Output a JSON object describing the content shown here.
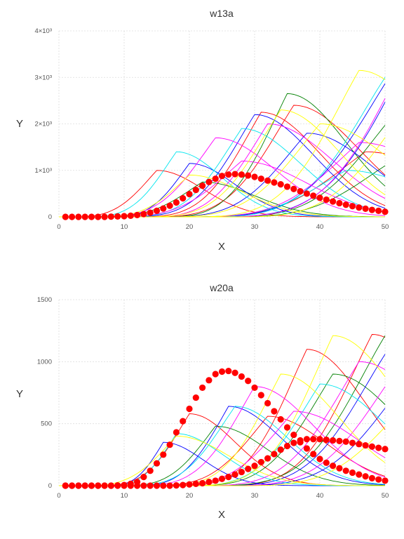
{
  "colors": {
    "observed": "#ff0000",
    "curve_palette": [
      "#ff0000",
      "#008000",
      "#0000ff",
      "#00e5ee",
      "#ff00ff",
      "#ffff00",
      "#cc0000",
      "#0000cc"
    ]
  },
  "chart_data": [
    {
      "type": "line",
      "title": "w13a",
      "xlabel": "X",
      "ylabel": "Y",
      "xlim": [
        0,
        50
      ],
      "ylim": [
        0,
        4000
      ],
      "xticks": [
        {
          "value": 0,
          "label": "0"
        },
        {
          "value": 10,
          "label": "10"
        },
        {
          "value": 20,
          "label": "20"
        },
        {
          "value": 30,
          "label": "30"
        },
        {
          "value": 40,
          "label": "40"
        },
        {
          "value": 50,
          "label": "50"
        }
      ],
      "yticks": [
        {
          "value": 0,
          "label": "0"
        },
        {
          "value": 1000,
          "label": "1×10³"
        },
        {
          "value": 2000,
          "label": "2×10³"
        },
        {
          "value": 3000,
          "label": "3×10³"
        },
        {
          "value": 4000,
          "label": "4×10³"
        }
      ],
      "grid": true,
      "ensemble": {
        "style": "thin lines",
        "members": [
          {
            "color": "#ff0000",
            "start": 2,
            "peak_x": 15,
            "peak_y": 1000,
            "width": 7
          },
          {
            "color": "#ff0000",
            "start": 12,
            "peak_x": 31,
            "peak_y": 2250,
            "width": 9
          },
          {
            "color": "#ff0000",
            "start": 14,
            "peak_x": 36,
            "peak_y": 2400,
            "width": 10
          },
          {
            "color": "#ff0000",
            "start": 18,
            "peak_x": 47,
            "peak_y": 1400,
            "width": 12
          },
          {
            "color": "#008000",
            "start": 16,
            "peak_x": 35,
            "peak_y": 2650,
            "width": 9
          },
          {
            "color": "#008000",
            "start": 22,
            "peak_x": 52,
            "peak_y": 2300,
            "width": 11
          },
          {
            "color": "#008000",
            "start": 5,
            "peak_x": 22,
            "peak_y": 750,
            "width": 8
          },
          {
            "color": "#008000",
            "start": 26,
            "peak_x": 50,
            "peak_y": 1100,
            "width": 12
          },
          {
            "color": "#0000ff",
            "start": 10,
            "peak_x": 30,
            "peak_y": 2200,
            "width": 9
          },
          {
            "color": "#0000ff",
            "start": 24,
            "peak_x": 56,
            "peak_y": 4100,
            "width": 14
          },
          {
            "color": "#0000ff",
            "start": 20,
            "peak_x": 52,
            "peak_y": 3300,
            "width": 13
          },
          {
            "color": "#0000ff",
            "start": 8,
            "peak_x": 20,
            "peak_y": 1150,
            "width": 7
          },
          {
            "color": "#0000ff",
            "start": 15,
            "peak_x": 38,
            "peak_y": 1800,
            "width": 10
          },
          {
            "color": "#00e5ee",
            "start": 4,
            "peak_x": 18,
            "peak_y": 1400,
            "width": 7
          },
          {
            "color": "#00e5ee",
            "start": 22,
            "peak_x": 50,
            "peak_y": 3000,
            "width": 12
          },
          {
            "color": "#00e5ee",
            "start": 10,
            "peak_x": 28,
            "peak_y": 1900,
            "width": 9
          },
          {
            "color": "#00e5ee",
            "start": 18,
            "peak_x": 44,
            "peak_y": 1000,
            "width": 11
          },
          {
            "color": "#ff00ff",
            "start": 6,
            "peak_x": 24,
            "peak_y": 1700,
            "width": 9
          },
          {
            "color": "#ff00ff",
            "start": 14,
            "peak_x": 32,
            "peak_y": 2000,
            "width": 10
          },
          {
            "color": "#ff00ff",
            "start": 24,
            "peak_x": 55,
            "peak_y": 3900,
            "width": 13
          },
          {
            "color": "#ff00ff",
            "start": 20,
            "peak_x": 46,
            "peak_y": 1600,
            "width": 12
          },
          {
            "color": "#ff00ff",
            "start": 8,
            "peak_x": 28,
            "peak_y": 1200,
            "width": 10
          },
          {
            "color": "#ffff00",
            "start": 12,
            "peak_x": 34,
            "peak_y": 2300,
            "width": 9
          },
          {
            "color": "#ffff00",
            "start": 20,
            "peak_x": 46,
            "peak_y": 3150,
            "width": 11
          },
          {
            "color": "#ffff00",
            "start": 16,
            "peak_x": 40,
            "peak_y": 2000,
            "width": 11
          },
          {
            "color": "#ffff00",
            "start": 28,
            "peak_x": 54,
            "peak_y": 2500,
            "width": 13
          },
          {
            "color": "#ffff00",
            "start": 6,
            "peak_x": 20,
            "peak_y": 900,
            "width": 8
          }
        ]
      },
      "series": [
        {
          "style": "markers",
          "color": "#ff0000",
          "x": [
            1,
            2,
            3,
            4,
            5,
            6,
            7,
            8,
            9,
            10,
            11,
            12,
            13,
            14,
            15,
            16,
            17,
            18,
            19,
            20,
            21,
            22,
            23,
            24,
            25,
            26,
            27,
            28,
            29,
            30,
            31,
            32,
            33,
            34,
            35,
            36,
            37,
            38,
            39,
            40,
            41,
            42,
            43,
            44,
            45,
            46,
            47,
            48,
            49,
            50
          ],
          "y": [
            0,
            0,
            0,
            0,
            0,
            0,
            0,
            5,
            10,
            15,
            25,
            40,
            60,
            90,
            130,
            180,
            240,
            310,
            400,
            490,
            580,
            670,
            750,
            820,
            880,
            910,
            920,
            910,
            890,
            860,
            820,
            780,
            740,
            700,
            650,
            600,
            550,
            500,
            455,
            410,
            370,
            330,
            295,
            260,
            230,
            200,
            175,
            150,
            130,
            110
          ]
        }
      ]
    },
    {
      "type": "line",
      "title": "w20a",
      "xlabel": "X",
      "ylabel": "Y",
      "xlim": [
        0,
        50
      ],
      "ylim": [
        0,
        1500
      ],
      "xticks": [
        {
          "value": 0,
          "label": "0"
        },
        {
          "value": 10,
          "label": "10"
        },
        {
          "value": 20,
          "label": "20"
        },
        {
          "value": 30,
          "label": "30"
        },
        {
          "value": 40,
          "label": "40"
        },
        {
          "value": 50,
          "label": "50"
        }
      ],
      "yticks": [
        {
          "value": 0,
          "label": "0"
        },
        {
          "value": 500,
          "label": "500"
        },
        {
          "value": 1000,
          "label": "1000"
        },
        {
          "value": 1500,
          "label": "1500"
        }
      ],
      "grid": true,
      "ensemble": {
        "style": "thin lines",
        "members": [
          {
            "color": "#ff0000",
            "start": 6,
            "peak_x": 20,
            "peak_y": 580,
            "width": 7
          },
          {
            "color": "#ff0000",
            "start": 18,
            "peak_x": 38,
            "peak_y": 1100,
            "width": 9
          },
          {
            "color": "#ff0000",
            "start": 24,
            "peak_x": 48,
            "peak_y": 1220,
            "width": 10
          },
          {
            "color": "#ff0000",
            "start": 14,
            "peak_x": 32,
            "peak_y": 560,
            "width": 9
          },
          {
            "color": "#008000",
            "start": 22,
            "peak_x": 50,
            "peak_y": 1210,
            "width": 11
          },
          {
            "color": "#008000",
            "start": 10,
            "peak_x": 24,
            "peak_y": 480,
            "width": 8
          },
          {
            "color": "#008000",
            "start": 20,
            "peak_x": 42,
            "peak_y": 900,
            "width": 10
          },
          {
            "color": "#0000ff",
            "start": 24,
            "peak_x": 50,
            "peak_y": 1060,
            "width": 11
          },
          {
            "color": "#0000ff",
            "start": 26,
            "peak_x": 54,
            "peak_y": 900,
            "width": 12
          },
          {
            "color": "#0000ff",
            "start": 12,
            "peak_x": 26,
            "peak_y": 640,
            "width": 8
          },
          {
            "color": "#0000ff",
            "start": 8,
            "peak_x": 16,
            "peak_y": 350,
            "width": 6
          },
          {
            "color": "#00e5ee",
            "start": 10,
            "peak_x": 27,
            "peak_y": 640,
            "width": 8
          },
          {
            "color": "#00e5ee",
            "start": 20,
            "peak_x": 40,
            "peak_y": 820,
            "width": 10
          },
          {
            "color": "#00e5ee",
            "start": 8,
            "peak_x": 18,
            "peak_y": 420,
            "width": 7
          },
          {
            "color": "#ff00ff",
            "start": 12,
            "peak_x": 30,
            "peak_y": 800,
            "width": 9
          },
          {
            "color": "#ff00ff",
            "start": 22,
            "peak_x": 46,
            "peak_y": 1000,
            "width": 11
          },
          {
            "color": "#ff00ff",
            "start": 26,
            "peak_x": 52,
            "peak_y": 950,
            "width": 12
          },
          {
            "color": "#ff00ff",
            "start": 16,
            "peak_x": 36,
            "peak_y": 600,
            "width": 10
          },
          {
            "color": "#ffff00",
            "start": 20,
            "peak_x": 42,
            "peak_y": 1210,
            "width": 10
          },
          {
            "color": "#ffff00",
            "start": 16,
            "peak_x": 34,
            "peak_y": 900,
            "width": 9
          },
          {
            "color": "#ffff00",
            "start": 4,
            "peak_x": 18,
            "peak_y": 400,
            "width": 8
          },
          {
            "color": "#ffff00",
            "start": 28,
            "peak_x": 54,
            "peak_y": 700,
            "width": 12
          }
        ]
      },
      "series": [
        {
          "style": "markers",
          "color": "#ff0000",
          "x": [
            1,
            2,
            3,
            4,
            5,
            6,
            7,
            8,
            9,
            10,
            11,
            12,
            13,
            14,
            15,
            16,
            17,
            18,
            19,
            20,
            21,
            22,
            23,
            24,
            25,
            26,
            27,
            28,
            29,
            30,
            31,
            32,
            33,
            34,
            35,
            36,
            37,
            38,
            39,
            40,
            41,
            42,
            43,
            44,
            45,
            46,
            47,
            48,
            49,
            50
          ],
          "y": [
            0,
            0,
            0,
            0,
            0,
            0,
            0,
            0,
            2,
            5,
            15,
            30,
            70,
            120,
            180,
            250,
            330,
            430,
            520,
            620,
            710,
            790,
            850,
            900,
            920,
            925,
            910,
            880,
            845,
            790,
            730,
            665,
            600,
            535,
            470,
            410,
            350,
            300,
            255,
            215,
            185,
            160,
            140,
            120,
            105,
            90,
            75,
            60,
            50,
            40
          ]
        },
        {
          "style": "markers",
          "color": "#ff0000",
          "x": [
            1,
            2,
            3,
            4,
            5,
            6,
            7,
            8,
            9,
            10,
            11,
            12,
            13,
            14,
            15,
            16,
            17,
            18,
            19,
            20,
            21,
            22,
            23,
            24,
            25,
            26,
            27,
            28,
            29,
            30,
            31,
            32,
            33,
            34,
            35,
            36,
            37,
            38,
            39,
            40,
            41,
            42,
            43,
            44,
            45,
            46,
            47,
            48,
            49,
            50
          ],
          "y": [
            0,
            0,
            0,
            0,
            0,
            0,
            0,
            0,
            0,
            0,
            0,
            0,
            0,
            0,
            0,
            0,
            0,
            2,
            5,
            10,
            15,
            20,
            30,
            40,
            55,
            70,
            90,
            110,
            135,
            160,
            190,
            220,
            255,
            290,
            320,
            345,
            365,
            375,
            375,
            375,
            370,
            365,
            360,
            355,
            345,
            335,
            325,
            315,
            305,
            295
          ]
        }
      ]
    }
  ]
}
